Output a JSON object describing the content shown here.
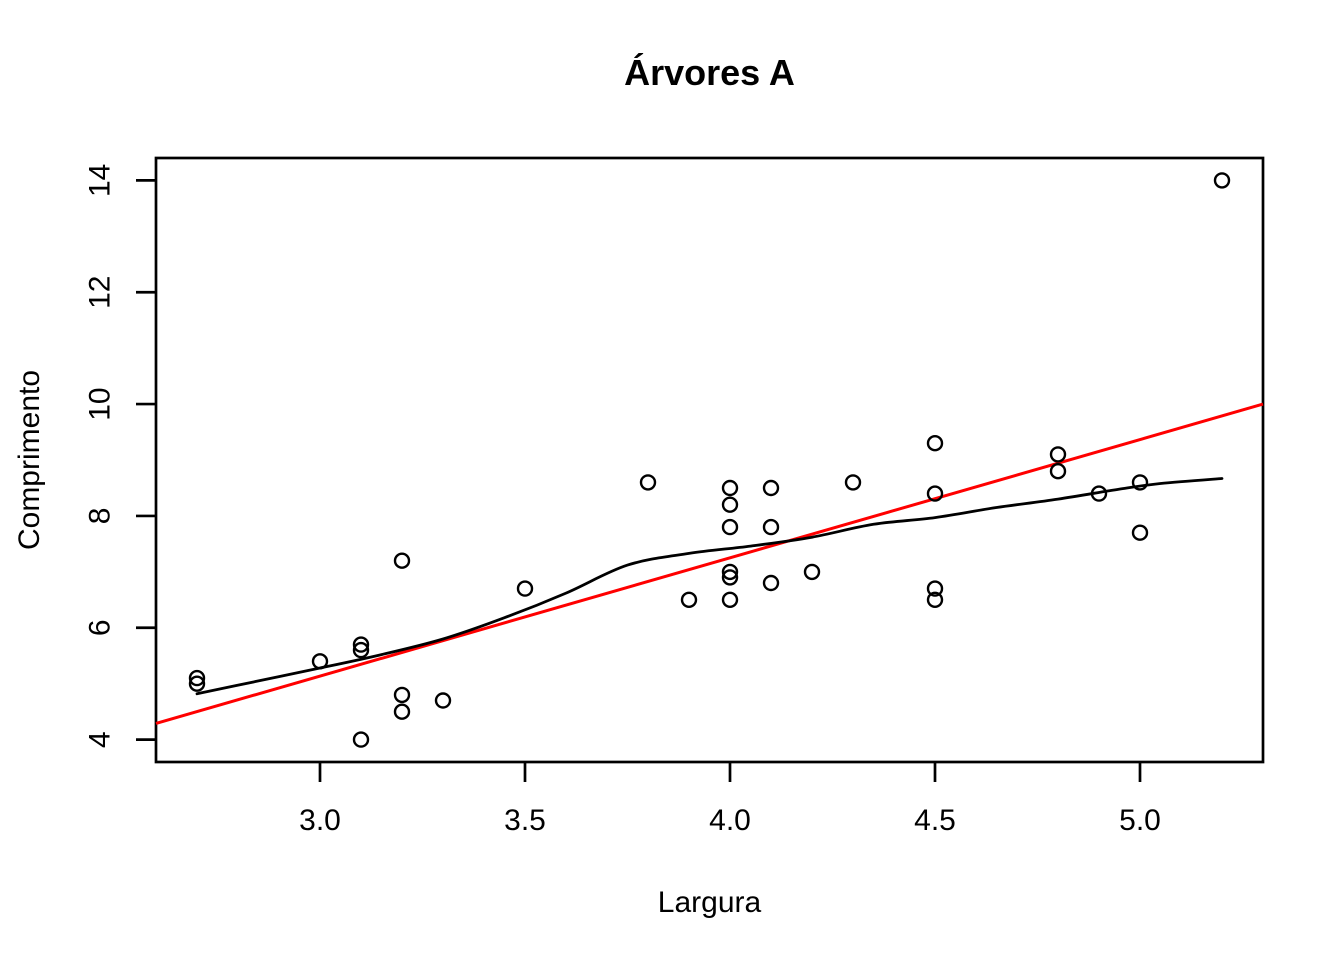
{
  "title": "Árvores A",
  "colors": {
    "background": "#ffffff",
    "foreground": "#000000",
    "regression_line": "#ff0000",
    "loess_line": "#000000",
    "point_stroke": "#000000"
  },
  "chart_data": {
    "type": "scatter",
    "title": "Árvores A",
    "xlabel": "Largura",
    "ylabel": "Comprimento",
    "xlim": [
      2.6,
      5.3
    ],
    "ylim": [
      3.6,
      14.4
    ],
    "grid": false,
    "legend_position": "none",
    "x_ticks": [
      3.0,
      3.5,
      4.0,
      4.5,
      5.0
    ],
    "x_tick_labels": [
      "3.0",
      "3.5",
      "4.0",
      "4.5",
      "5.0"
    ],
    "y_ticks": [
      4,
      6,
      8,
      10,
      12,
      14
    ],
    "y_tick_labels": [
      "4",
      "6",
      "8",
      "10",
      "12",
      "14"
    ],
    "marker": "open-circle",
    "points": [
      [
        2.7,
        5.0
      ],
      [
        2.7,
        5.1
      ],
      [
        3.0,
        5.4
      ],
      [
        3.1,
        4.0
      ],
      [
        3.1,
        5.6
      ],
      [
        3.1,
        5.7
      ],
      [
        3.2,
        4.5
      ],
      [
        3.2,
        4.8
      ],
      [
        3.2,
        7.2
      ],
      [
        3.3,
        4.7
      ],
      [
        3.5,
        6.7
      ],
      [
        3.8,
        8.6
      ],
      [
        3.9,
        6.5
      ],
      [
        4.0,
        6.5
      ],
      [
        4.0,
        6.9
      ],
      [
        4.0,
        7.0
      ],
      [
        4.0,
        7.8
      ],
      [
        4.0,
        8.2
      ],
      [
        4.0,
        8.5
      ],
      [
        4.1,
        6.8
      ],
      [
        4.1,
        7.8
      ],
      [
        4.1,
        8.5
      ],
      [
        4.2,
        7.0
      ],
      [
        4.3,
        8.6
      ],
      [
        4.5,
        6.5
      ],
      [
        4.5,
        6.7
      ],
      [
        4.5,
        8.4
      ],
      [
        4.5,
        9.3
      ],
      [
        4.8,
        8.8
      ],
      [
        4.8,
        9.1
      ],
      [
        4.9,
        8.4
      ],
      [
        5.0,
        7.7
      ],
      [
        5.0,
        8.6
      ],
      [
        5.2,
        14.0
      ]
    ],
    "series": [
      {
        "name": "linear-regression-line",
        "type": "line",
        "color": "#ff0000",
        "x": [
          2.6,
          5.3
        ],
        "y": [
          4.29,
          10.0
        ]
      },
      {
        "name": "loess-smooth-curve",
        "type": "curve",
        "color": "#000000",
        "points": [
          [
            2.7,
            4.82
          ],
          [
            2.85,
            5.05
          ],
          [
            3.0,
            5.28
          ],
          [
            3.15,
            5.52
          ],
          [
            3.3,
            5.8
          ],
          [
            3.45,
            6.18
          ],
          [
            3.6,
            6.62
          ],
          [
            3.75,
            7.12
          ],
          [
            3.9,
            7.33
          ],
          [
            4.05,
            7.46
          ],
          [
            4.2,
            7.62
          ],
          [
            4.35,
            7.85
          ],
          [
            4.5,
            7.97
          ],
          [
            4.65,
            8.15
          ],
          [
            4.8,
            8.3
          ],
          [
            4.95,
            8.48
          ],
          [
            5.05,
            8.58
          ],
          [
            5.2,
            8.67
          ]
        ]
      }
    ]
  }
}
